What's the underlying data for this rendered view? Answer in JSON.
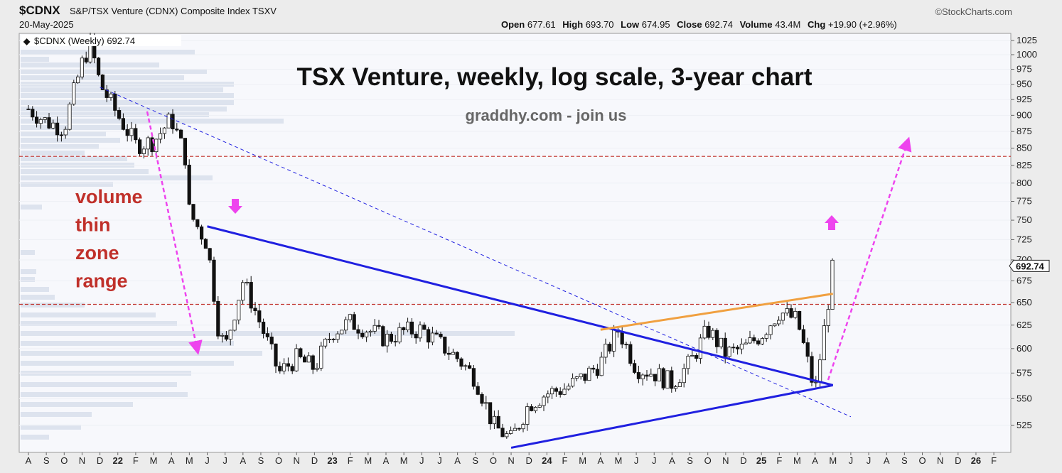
{
  "header": {
    "symbol": "$CDNX",
    "description": "S&P/TSX Venture (CDNX) Composite Index  TSXV",
    "date": "20-May-2025",
    "credit": "©StockCharts.com",
    "open_label": "Open",
    "open": "677.61",
    "high_label": "High",
    "high": "693.70",
    "low_label": "Low",
    "low": "674.95",
    "close_label": "Close",
    "close": "692.74",
    "volume_label": "Volume",
    "volume": "43.4M",
    "chg_label": "Chg",
    "chg": "+19.90 (+2.96%)"
  },
  "chart_data": {
    "type": "candlestick",
    "legend": "$CDNX (Weekly) 692.74",
    "title": "TSX Venture, weekly, log scale, 3-year chart",
    "subtitle": "graddhy.com - join us",
    "annotation": [
      "volume",
      "thin",
      "zone",
      "range"
    ],
    "y_scale": "log",
    "ylim": [
      505,
      1035
    ],
    "y_ticks": [
      525,
      550,
      575,
      600,
      625,
      650,
      675,
      700,
      725,
      750,
      775,
      800,
      825,
      850,
      875,
      900,
      925,
      950,
      975,
      1000,
      1025
    ],
    "last_price_label": "692.74",
    "x_tick_labels": [
      "A",
      "S",
      "O",
      "N",
      "D",
      "22",
      "F",
      "M",
      "A",
      "M",
      "J",
      "J",
      "A",
      "S",
      "O",
      "N",
      "D",
      "23",
      "F",
      "M",
      "A",
      "M",
      "J",
      "J",
      "A",
      "S",
      "O",
      "N",
      "D",
      "24",
      "F",
      "M",
      "A",
      "M",
      "J",
      "J",
      "A",
      "S",
      "O",
      "N",
      "D",
      "25",
      "F",
      "M",
      "A",
      "M",
      "J",
      "J",
      "A",
      "S",
      "O",
      "N",
      "D",
      "26",
      "F"
    ],
    "horizontal_levels": [
      838,
      648
    ],
    "trendlines": [
      {
        "name": "blue-upper",
        "from": [
          "2022-06",
          742
        ],
        "to": [
          "2025-05",
          563
        ]
      },
      {
        "name": "blue-lower",
        "from": [
          "2023-11",
          505
        ],
        "to": [
          "2025-05",
          563
        ]
      },
      {
        "name": "blue-dashed",
        "from": [
          "2021-12",
          945
        ],
        "to": [
          "2025-06",
          533
        ]
      },
      {
        "name": "orange",
        "from": [
          "2024-04",
          620
        ],
        "to": [
          "2025-05",
          660
        ]
      }
    ],
    "weekly_close_path": [
      [
        "2021-08",
        910
      ],
      [
        "2021-09",
        890
      ],
      [
        "2021-10",
        880
      ],
      [
        "2021-11",
        985
      ],
      [
        "2021-11-15",
        1020
      ],
      [
        "2021-12",
        950
      ],
      [
        "2022-01",
        900
      ],
      [
        "2022-02",
        855
      ],
      [
        "2022-03",
        860
      ],
      [
        "2022-04",
        895
      ],
      [
        "2022-04-25",
        835
      ],
      [
        "2022-05",
        760
      ],
      [
        "2022-06",
        720
      ],
      [
        "2022-06-20",
        620
      ],
      [
        "2022-07",
        600
      ],
      [
        "2022-08",
        675
      ],
      [
        "2022-09",
        625
      ],
      [
        "2022-10",
        575
      ],
      [
        "2022-11",
        590
      ],
      [
        "2022-12",
        580
      ],
      [
        "2023-01",
        618
      ],
      [
        "2023-02",
        628
      ],
      [
        "2023-03",
        620
      ],
      [
        "2023-04",
        610
      ],
      [
        "2023-05",
        618
      ],
      [
        "2023-06",
        620
      ],
      [
        "2023-07",
        605
      ],
      [
        "2023-08",
        590
      ],
      [
        "2023-09",
        570
      ],
      [
        "2023-10",
        525
      ],
      [
        "2023-11",
        512
      ],
      [
        "2023-12",
        545
      ],
      [
        "2024-01",
        555
      ],
      [
        "2024-02",
        560
      ],
      [
        "2024-03",
        570
      ],
      [
        "2024-04",
        585
      ],
      [
        "2024-05",
        620
      ],
      [
        "2024-06",
        580
      ],
      [
        "2024-07",
        575
      ],
      [
        "2024-08",
        565
      ],
      [
        "2024-09",
        585
      ],
      [
        "2024-10",
        620
      ],
      [
        "2024-11",
        595
      ],
      [
        "2024-12",
        600
      ],
      [
        "2025-01",
        615
      ],
      [
        "2025-02",
        640
      ],
      [
        "2025-03",
        630
      ],
      [
        "2025-04",
        555
      ],
      [
        "2025-04-21",
        640
      ],
      [
        "2025-05",
        692.74
      ]
    ],
    "colors": {
      "trend": "#2020e0",
      "orange": "#f0a040",
      "levels": "#c0302a",
      "arrows": "#ee44ee",
      "annotation": "#c0302a"
    }
  }
}
